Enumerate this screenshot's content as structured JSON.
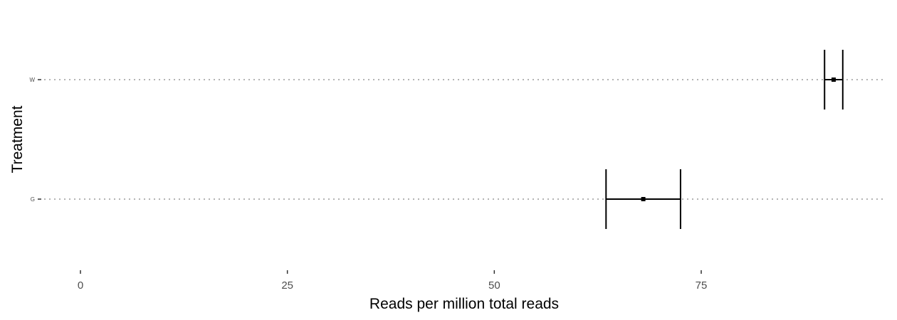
{
  "chart_data": {
    "type": "scatter",
    "orientation": "horizontal",
    "xlabel": "Reads per million total reads",
    "ylabel": "Treatment",
    "xlim": [
      -5,
      97
    ],
    "xticks": [
      0,
      25,
      50,
      75
    ],
    "xtick_labels": [
      "0",
      "25",
      "50",
      "75"
    ],
    "categories": [
      "W",
      "G"
    ],
    "grid": "dotted horizontal guide lines",
    "legend": "none",
    "series": [
      {
        "points": [
          {
            "category": "W",
            "value": 91.0,
            "error_low": 89.9,
            "error_high": 92.1
          },
          {
            "category": "G",
            "value": 68.0,
            "error_low": 63.5,
            "error_high": 72.5
          }
        ]
      }
    ],
    "colors": {
      "marks": "#000000",
      "guides": "#b3b3b3",
      "tick_text": "#4d4d4d"
    }
  }
}
